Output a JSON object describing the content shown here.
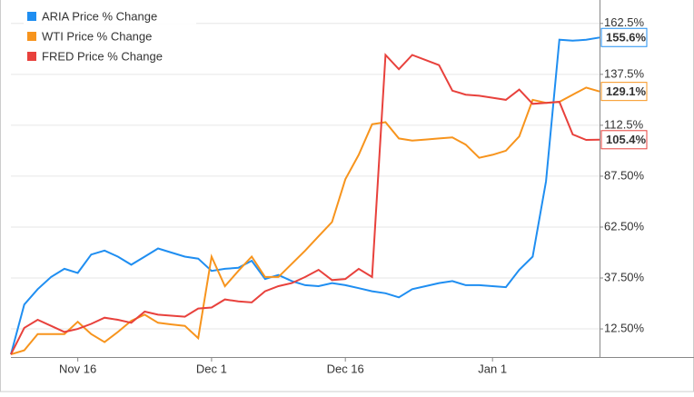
{
  "chart_data": {
    "type": "line",
    "categories": [
      null,
      null,
      null,
      null,
      null,
      "Nov 16",
      null,
      null,
      null,
      null,
      null,
      null,
      null,
      null,
      null,
      "Dec 1",
      null,
      null,
      null,
      null,
      null,
      null,
      null,
      null,
      null,
      "Dec 16",
      null,
      null,
      null,
      null,
      null,
      null,
      null,
      null,
      null,
      null,
      "Jan 1",
      null,
      null,
      null,
      null,
      null,
      null,
      null,
      null
    ],
    "series": [
      {
        "name": "ARIA Price % Change",
        "color": "#1f8ef1",
        "values": [
          0,
          24.5,
          32,
          38,
          42,
          40,
          49,
          51,
          48,
          44,
          48,
          52,
          50,
          48,
          47,
          41,
          42,
          42.5,
          46,
          37,
          39,
          36,
          34,
          33.5,
          35,
          34,
          32.5,
          31,
          30,
          28,
          32,
          33.5,
          35,
          36,
          34,
          34,
          33.5,
          33,
          41.5,
          48,
          85,
          154.5,
          154,
          154.5,
          155.6
        ],
        "value_labels": [
          null,
          null,
          null,
          null,
          null,
          null,
          null,
          null,
          null,
          null,
          null,
          null,
          null,
          null,
          null,
          null,
          null,
          null,
          null,
          null,
          null,
          null,
          null,
          null,
          null,
          null,
          null,
          null,
          null,
          null,
          null,
          null,
          null,
          null,
          null,
          null,
          null,
          null,
          null,
          null,
          null,
          null,
          null,
          null,
          "155.6%"
        ]
      },
      {
        "name": "WTI Price % Change",
        "color": "#f7941d",
        "values": [
          0,
          2,
          10,
          10,
          10,
          16,
          10,
          6,
          11,
          16.5,
          19.5,
          15.5,
          14.7,
          14,
          8,
          48,
          33.5,
          41,
          48,
          38,
          38,
          44.5,
          51,
          58,
          65,
          86,
          98,
          113,
          114,
          106,
          105,
          105.5,
          106,
          106.5,
          103,
          96.5,
          98,
          100,
          107,
          125,
          123.5,
          124,
          127.5,
          131,
          129.1
        ],
        "value_labels": [
          null,
          null,
          null,
          null,
          null,
          null,
          null,
          null,
          null,
          null,
          null,
          null,
          null,
          null,
          null,
          null,
          null,
          null,
          null,
          null,
          null,
          null,
          null,
          null,
          null,
          null,
          null,
          null,
          null,
          null,
          null,
          null,
          null,
          null,
          null,
          null,
          null,
          null,
          null,
          null,
          null,
          null,
          null,
          null,
          "129.1%"
        ]
      },
      {
        "name": "FRED Price % Change",
        "color": "#e8413c",
        "values": [
          0,
          13,
          17,
          14,
          11,
          12.5,
          15,
          18,
          17,
          15.5,
          21,
          19.5,
          19,
          18.5,
          22.5,
          23,
          27,
          26,
          25.5,
          31,
          33.5,
          35,
          38,
          41.5,
          36.5,
          37,
          42,
          38,
          147,
          140,
          147,
          144.5,
          142,
          129.5,
          127.5,
          127,
          126,
          125,
          130,
          123,
          123.5,
          124,
          108,
          105.3,
          105.4
        ],
        "value_labels": [
          null,
          null,
          null,
          null,
          null,
          null,
          null,
          null,
          null,
          null,
          null,
          null,
          null,
          null,
          null,
          null,
          null,
          null,
          null,
          null,
          null,
          null,
          null,
          null,
          null,
          null,
          null,
          null,
          null,
          null,
          null,
          null,
          null,
          null,
          null,
          null,
          null,
          null,
          null,
          null,
          null,
          null,
          null,
          null,
          "105.4%"
        ]
      }
    ],
    "ylim": [
      -1.3,
      174
    ],
    "yticks": [
      {
        "value": 12.5,
        "label": "12.50%"
      },
      {
        "value": 37.5,
        "label": "37.50%"
      },
      {
        "value": 62.5,
        "label": "62.50%"
      },
      {
        "value": 87.5,
        "label": "87.50%"
      },
      {
        "value": 112.5,
        "label": "112.5%"
      },
      {
        "value": 137.5,
        "label": "137.5%"
      },
      {
        "value": 162.5,
        "label": "162.5%"
      }
    ],
    "grid": true,
    "legend": "top-left"
  }
}
